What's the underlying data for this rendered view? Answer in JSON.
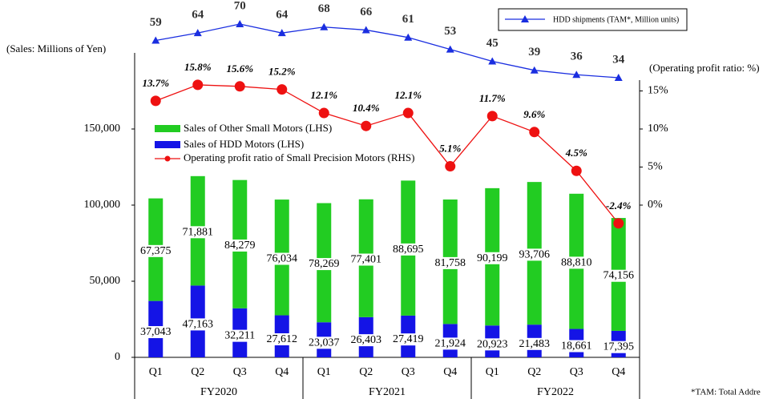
{
  "chart_data": {
    "type": "bar",
    "y_label": "(Sales: Millions of Yen)",
    "y2_label": "(Operating profit ratio: %)",
    "footnote": "*TAM: Total Addre",
    "categories": [
      "Q1",
      "Q2",
      "Q3",
      "Q4",
      "Q1",
      "Q2",
      "Q3",
      "Q4",
      "Q1",
      "Q2",
      "Q3",
      "Q4"
    ],
    "groups": [
      "FY2020",
      "FY2021",
      "FY2022"
    ],
    "ylim": [
      0,
      200000
    ],
    "yticks": [
      0,
      {
        "value": 50000,
        "label": "50,000"
      },
      {
        "value": 100000,
        "label": "100,000"
      },
      {
        "value": 150000,
        "label": "150,000"
      }
    ],
    "y2lim": [
      -20,
      20
    ],
    "y2ticks": [
      {
        "value": 0,
        "label": "0%"
      },
      {
        "value": 5,
        "label": "5%"
      },
      {
        "value": 10,
        "label": "10%"
      },
      {
        "value": 15,
        "label": "15%"
      }
    ],
    "series": [
      {
        "name": "Sales of HDD Motors (LHS)",
        "type": "bar",
        "color": "#1414e6",
        "values": [
          37043,
          47163,
          32211,
          27612,
          23037,
          26403,
          27419,
          21924,
          20923,
          21483,
          18661,
          17395
        ],
        "value_labels": [
          "37,043",
          "47,163",
          "32,211",
          "27,612",
          "23,037",
          "26,403",
          "27,419",
          "21,924",
          "20,923",
          "21,483",
          "18,661",
          "17,395"
        ]
      },
      {
        "name": "Sales of Other Small Motors (LHS)",
        "type": "bar",
        "color": "#22cc22",
        "values": [
          67375,
          71881,
          84279,
          76034,
          78269,
          77401,
          88695,
          81758,
          90199,
          93706,
          88810,
          74156
        ],
        "value_labels": [
          "67,375",
          "71,881",
          "84,279",
          "76,034",
          "78,269",
          "77,401",
          "88,695",
          "81,758",
          "90,199",
          "93,706",
          "88,810",
          "74,156"
        ]
      },
      {
        "name": "Operating profit ratio of Small Precision Motors (RHS)",
        "type": "line",
        "axis": "y2",
        "color": "#ee1111",
        "values": [
          13.7,
          15.8,
          15.6,
          15.2,
          12.1,
          10.4,
          12.1,
          5.1,
          11.7,
          9.6,
          4.5,
          -2.4
        ],
        "value_labels": [
          "13.7%",
          "15.8%",
          "15.6%",
          "15.2%",
          "12.1%",
          "10.4%",
          "12.1%",
          "5.1%",
          "11.7%",
          "9.6%",
          "4.5%",
          "-2.4%"
        ]
      },
      {
        "name": "HDD shipments (TAM*, Million units)",
        "type": "line",
        "color": "#1a2ee0",
        "values": [
          59,
          64,
          70,
          64,
          68,
          66,
          61,
          53,
          45,
          39,
          36,
          34
        ]
      }
    ]
  }
}
